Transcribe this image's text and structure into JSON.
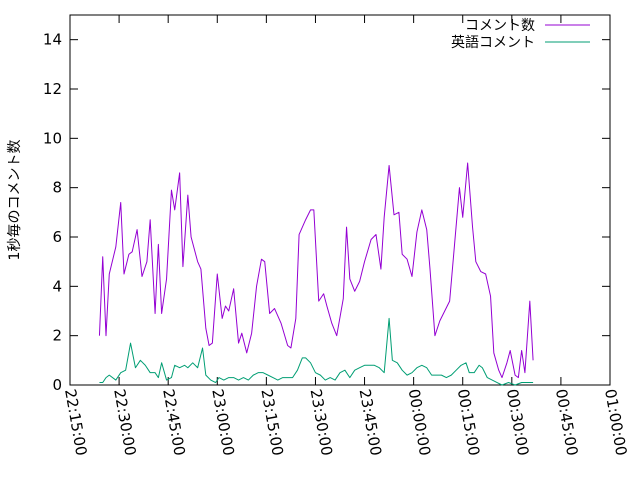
{
  "chart_data": {
    "type": "line",
    "ylabel": "1秒毎のコメント数",
    "xlabel": "",
    "ylim": [
      0,
      15
    ],
    "yticks": [
      0,
      2,
      4,
      6,
      8,
      10,
      12,
      14
    ],
    "xlim": [
      "22:15:00",
      "01:00:00"
    ],
    "xticks": [
      "22:15:00",
      "22:30:00",
      "22:45:00",
      "23:00:00",
      "23:15:00",
      "23:30:00",
      "23:45:00",
      "00:00:00",
      "00:15:00",
      "00:30:00",
      "00:45:00",
      "01:00:00"
    ],
    "grid": false,
    "legend_position": "top-right",
    "series": [
      {
        "name": "コメント数",
        "color": "#9400d3",
        "points": [
          [
            "22:24:00",
            2.0
          ],
          [
            "22:25:00",
            5.2
          ],
          [
            "22:26:00",
            2.0
          ],
          [
            "22:27:00",
            4.5
          ],
          [
            "22:29:00",
            5.6
          ],
          [
            "22:30:30",
            7.4
          ],
          [
            "22:31:30",
            4.5
          ],
          [
            "22:33:00",
            5.3
          ],
          [
            "22:34:00",
            5.4
          ],
          [
            "22:35:30",
            6.3
          ],
          [
            "22:37:00",
            4.4
          ],
          [
            "22:38:30",
            5.0
          ],
          [
            "22:39:30",
            6.7
          ],
          [
            "22:41:00",
            2.9
          ],
          [
            "22:42:00",
            5.7
          ],
          [
            "22:43:00",
            2.9
          ],
          [
            "22:44:30",
            4.3
          ],
          [
            "22:46:00",
            7.9
          ],
          [
            "22:47:00",
            7.1
          ],
          [
            "22:48:30",
            8.6
          ],
          [
            "22:49:30",
            4.8
          ],
          [
            "22:51:00",
            7.7
          ],
          [
            "22:52:00",
            6.0
          ],
          [
            "22:54:00",
            5.0
          ],
          [
            "22:55:00",
            4.7
          ],
          [
            "22:56:30",
            2.3
          ],
          [
            "22:57:30",
            1.6
          ],
          [
            "22:58:30",
            1.7
          ],
          [
            "23:00:00",
            4.5
          ],
          [
            "23:01:30",
            2.7
          ],
          [
            "23:02:30",
            3.2
          ],
          [
            "23:03:30",
            3.0
          ],
          [
            "23:05:00",
            3.9
          ],
          [
            "23:06:30",
            1.7
          ],
          [
            "23:07:30",
            2.1
          ],
          [
            "23:09:00",
            1.3
          ],
          [
            "23:10:30",
            2.1
          ],
          [
            "23:12:00",
            4.0
          ],
          [
            "23:13:30",
            5.1
          ],
          [
            "23:14:30",
            5.0
          ],
          [
            "23:16:00",
            2.9
          ],
          [
            "23:17:30",
            3.1
          ],
          [
            "23:19:30",
            2.5
          ],
          [
            "23:21:30",
            1.6
          ],
          [
            "23:22:30",
            1.5
          ],
          [
            "23:24:00",
            2.7
          ],
          [
            "23:25:00",
            6.1
          ],
          [
            "23:27:00",
            6.7
          ],
          [
            "23:28:30",
            7.1
          ],
          [
            "23:29:30",
            7.1
          ],
          [
            "23:31:00",
            3.4
          ],
          [
            "23:32:30",
            3.7
          ],
          [
            "23:33:30",
            3.2
          ],
          [
            "23:35:00",
            2.5
          ],
          [
            "23:36:30",
            2.0
          ],
          [
            "23:38:30",
            3.5
          ],
          [
            "23:39:30",
            6.4
          ],
          [
            "23:40:30",
            4.3
          ],
          [
            "23:42:00",
            3.8
          ],
          [
            "23:43:30",
            4.2
          ],
          [
            "23:45:00",
            5.0
          ],
          [
            "23:47:00",
            5.9
          ],
          [
            "23:48:30",
            6.1
          ],
          [
            "23:50:00",
            4.7
          ],
          [
            "23:51:00",
            6.8
          ],
          [
            "23:52:30",
            8.9
          ],
          [
            "23:54:00",
            6.9
          ],
          [
            "23:55:30",
            7.0
          ],
          [
            "23:56:30",
            5.3
          ],
          [
            "23:58:00",
            5.1
          ],
          [
            "23:59:30",
            4.4
          ],
          [
            "00:01:00",
            6.2
          ],
          [
            "00:02:30",
            7.1
          ],
          [
            "00:04:00",
            6.3
          ],
          [
            "00:05:00",
            4.7
          ],
          [
            "00:06:30",
            2.0
          ],
          [
            "00:08:00",
            2.6
          ],
          [
            "00:09:30",
            3.0
          ],
          [
            "00:11:00",
            3.4
          ],
          [
            "00:12:30",
            5.7
          ],
          [
            "00:14:00",
            8.0
          ],
          [
            "00:15:00",
            6.8
          ],
          [
            "00:16:30",
            9.0
          ],
          [
            "00:18:00",
            6.4
          ],
          [
            "00:19:00",
            5.0
          ],
          [
            "00:20:30",
            4.6
          ],
          [
            "00:22:00",
            4.5
          ],
          [
            "00:23:30",
            3.6
          ],
          [
            "00:24:30",
            1.3
          ],
          [
            "00:26:00",
            0.6
          ],
          [
            "00:27:00",
            0.3
          ],
          [
            "00:28:30",
            0.9
          ],
          [
            "00:29:30",
            1.4
          ],
          [
            "00:31:00",
            0.4
          ],
          [
            "00:32:00",
            0.3
          ],
          [
            "00:33:00",
            1.4
          ],
          [
            "00:34:00",
            0.5
          ],
          [
            "00:35:30",
            3.4
          ],
          [
            "00:36:30",
            1.0
          ]
        ]
      },
      {
        "name": "英語コメント",
        "color": "#009e73",
        "points": [
          [
            "22:24:00",
            0.1
          ],
          [
            "22:25:00",
            0.1
          ],
          [
            "22:26:00",
            0.3
          ],
          [
            "22:27:00",
            0.4
          ],
          [
            "22:29:00",
            0.2
          ],
          [
            "22:30:30",
            0.5
          ],
          [
            "22:32:00",
            0.6
          ],
          [
            "22:33:30",
            1.7
          ],
          [
            "22:35:00",
            0.7
          ],
          [
            "22:36:30",
            1.0
          ],
          [
            "22:38:00",
            0.8
          ],
          [
            "22:39:30",
            0.5
          ],
          [
            "22:41:00",
            0.5
          ],
          [
            "22:42:00",
            0.3
          ],
          [
            "22:43:00",
            0.9
          ],
          [
            "22:44:30",
            0.2
          ],
          [
            "22:46:00",
            0.3
          ],
          [
            "22:47:00",
            0.8
          ],
          [
            "22:48:30",
            0.7
          ],
          [
            "22:50:00",
            0.8
          ],
          [
            "22:51:00",
            0.7
          ],
          [
            "22:52:30",
            0.9
          ],
          [
            "22:54:00",
            0.7
          ],
          [
            "22:55:30",
            1.5
          ],
          [
            "22:56:30",
            0.4
          ],
          [
            "22:58:00",
            0.2
          ],
          [
            "22:59:30",
            0.1
          ],
          [
            "23:00:30",
            0.3
          ],
          [
            "23:02:00",
            0.2
          ],
          [
            "23:03:30",
            0.3
          ],
          [
            "23:05:00",
            0.3
          ],
          [
            "23:06:30",
            0.2
          ],
          [
            "23:08:00",
            0.3
          ],
          [
            "23:09:30",
            0.2
          ],
          [
            "23:11:00",
            0.4
          ],
          [
            "23:12:30",
            0.5
          ],
          [
            "23:14:00",
            0.5
          ],
          [
            "23:15:30",
            0.4
          ],
          [
            "23:17:00",
            0.3
          ],
          [
            "23:18:30",
            0.2
          ],
          [
            "23:20:00",
            0.3
          ],
          [
            "23:21:30",
            0.3
          ],
          [
            "23:23:00",
            0.3
          ],
          [
            "23:24:30",
            0.6
          ],
          [
            "23:26:00",
            1.1
          ],
          [
            "23:27:00",
            1.1
          ],
          [
            "23:28:30",
            0.9
          ],
          [
            "23:30:00",
            0.5
          ],
          [
            "23:31:30",
            0.4
          ],
          [
            "23:33:00",
            0.2
          ],
          [
            "23:34:30",
            0.3
          ],
          [
            "23:36:00",
            0.2
          ],
          [
            "23:37:30",
            0.5
          ],
          [
            "23:39:00",
            0.6
          ],
          [
            "23:40:30",
            0.3
          ],
          [
            "23:42:00",
            0.6
          ],
          [
            "23:43:30",
            0.7
          ],
          [
            "23:45:00",
            0.8
          ],
          [
            "23:46:30",
            0.8
          ],
          [
            "23:48:00",
            0.8
          ],
          [
            "23:49:30",
            0.7
          ],
          [
            "23:51:00",
            0.5
          ],
          [
            "23:52:30",
            2.7
          ],
          [
            "23:53:30",
            1.0
          ],
          [
            "23:55:00",
            0.9
          ],
          [
            "23:56:30",
            0.6
          ],
          [
            "23:58:00",
            0.4
          ],
          [
            "23:59:30",
            0.5
          ],
          [
            "00:01:00",
            0.7
          ],
          [
            "00:02:30",
            0.8
          ],
          [
            "00:04:00",
            0.7
          ],
          [
            "00:05:30",
            0.4
          ],
          [
            "00:07:00",
            0.4
          ],
          [
            "00:08:30",
            0.4
          ],
          [
            "00:10:00",
            0.3
          ],
          [
            "00:11:30",
            0.4
          ],
          [
            "00:13:00",
            0.6
          ],
          [
            "00:14:30",
            0.8
          ],
          [
            "00:16:00",
            0.9
          ],
          [
            "00:17:00",
            0.5
          ],
          [
            "00:18:30",
            0.5
          ],
          [
            "00:20:00",
            0.8
          ],
          [
            "00:21:00",
            0.7
          ],
          [
            "00:22:30",
            0.3
          ],
          [
            "00:24:00",
            0.2
          ],
          [
            "00:25:30",
            0.1
          ],
          [
            "00:27:00",
            0.0
          ],
          [
            "00:29:00",
            0.1
          ],
          [
            "00:31:00",
            0.0
          ],
          [
            "00:33:00",
            0.1
          ],
          [
            "00:35:00",
            0.1
          ],
          [
            "00:36:30",
            0.1
          ]
        ]
      }
    ]
  }
}
